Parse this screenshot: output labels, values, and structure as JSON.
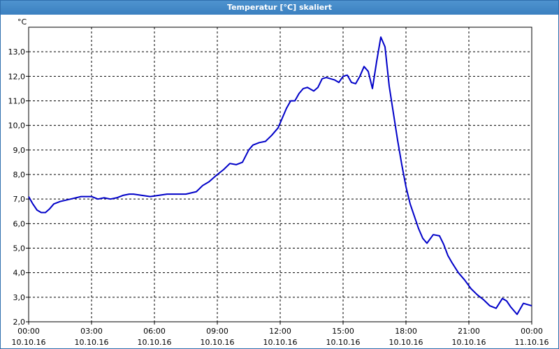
{
  "window": {
    "title": "Temperatur [°C] skaliert"
  },
  "colors": {
    "titlebar": "#3b80c0",
    "line": "#0000c8",
    "grid": "#000000"
  },
  "chart_data": {
    "type": "line",
    "title": "Temperatur [°C] skaliert",
    "ylabel": "°C",
    "xlabel": "",
    "xlim_hours": [
      0,
      24
    ],
    "ylim": [
      2.0,
      14.0
    ],
    "grid": true,
    "y_ticks": [
      "2,0",
      "3,0",
      "4,0",
      "5,0",
      "6,0",
      "7,0",
      "8,0",
      "9,0",
      "10,0",
      "11,0",
      "12,0",
      "13,0"
    ],
    "y_tick_values": [
      2,
      3,
      4,
      5,
      6,
      7,
      8,
      9,
      10,
      11,
      12,
      13
    ],
    "x_ticks": [
      {
        "time": "00:00",
        "date": "10.10.16"
      },
      {
        "time": "03:00",
        "date": "10.10.16"
      },
      {
        "time": "06:00",
        "date": "10.10.16"
      },
      {
        "time": "09:00",
        "date": "10.10.16"
      },
      {
        "time": "12:00",
        "date": "10.10.16"
      },
      {
        "time": "15:00",
        "date": "10.10.16"
      },
      {
        "time": "18:00",
        "date": "10.10.16"
      },
      {
        "time": "21:00",
        "date": "10.10.16"
      },
      {
        "time": "00:00",
        "date": "11.10.16"
      }
    ],
    "x_tick_hours": [
      0,
      3,
      6,
      9,
      12,
      15,
      18,
      21,
      24
    ],
    "series": [
      {
        "x": [
          0,
          0.2,
          0.4,
          0.6,
          0.8,
          1.0,
          1.2,
          1.5,
          2.0,
          2.5,
          3.0,
          3.3,
          3.6,
          3.9,
          4.2,
          4.5,
          4.8,
          5.0,
          5.4,
          5.8,
          6.2,
          6.6,
          7.0,
          7.5,
          8.0,
          8.3,
          8.6,
          9.0,
          9.3,
          9.6,
          9.9,
          10.2,
          10.5,
          10.7,
          11.0,
          11.3,
          11.6,
          11.9,
          12.1,
          12.3,
          12.5,
          12.7,
          12.9,
          13.1,
          13.3,
          13.6,
          13.8,
          14.0,
          14.2,
          14.4,
          14.6,
          14.8,
          15.0,
          15.2,
          15.4,
          15.6,
          15.8,
          16.0,
          16.2,
          16.4,
          16.6,
          16.8,
          17.0,
          17.2,
          17.4,
          17.6,
          17.8,
          18.0,
          18.2,
          18.4,
          18.6,
          18.8,
          19.0,
          19.3,
          19.6,
          19.8,
          20.0,
          20.2,
          20.5,
          20.8,
          21.1,
          21.4,
          21.7,
          22.0,
          22.3,
          22.6,
          22.8,
          23.0,
          23.3,
          23.6,
          24.0
        ],
        "y": [
          7.1,
          6.8,
          6.55,
          6.45,
          6.45,
          6.6,
          6.8,
          6.9,
          7.0,
          7.1,
          7.1,
          7.0,
          7.05,
          7.0,
          7.05,
          7.15,
          7.2,
          7.2,
          7.15,
          7.1,
          7.15,
          7.2,
          7.2,
          7.2,
          7.3,
          7.55,
          7.7,
          8.0,
          8.2,
          8.45,
          8.4,
          8.5,
          9.0,
          9.2,
          9.3,
          9.35,
          9.6,
          9.9,
          10.3,
          10.7,
          11.0,
          11.0,
          11.3,
          11.5,
          11.55,
          11.4,
          11.55,
          11.9,
          11.95,
          11.9,
          11.85,
          11.75,
          12.0,
          12.05,
          11.75,
          11.7,
          12.0,
          12.4,
          12.2,
          11.5,
          12.6,
          13.6,
          13.2,
          11.6,
          10.5,
          9.4,
          8.4,
          7.5,
          6.8,
          6.3,
          5.8,
          5.4,
          5.2,
          5.55,
          5.5,
          5.15,
          4.7,
          4.4,
          4.0,
          3.7,
          3.35,
          3.1,
          2.9,
          2.65,
          2.55,
          2.95,
          2.85,
          2.6,
          2.3,
          2.75,
          2.65
        ]
      }
    ]
  }
}
